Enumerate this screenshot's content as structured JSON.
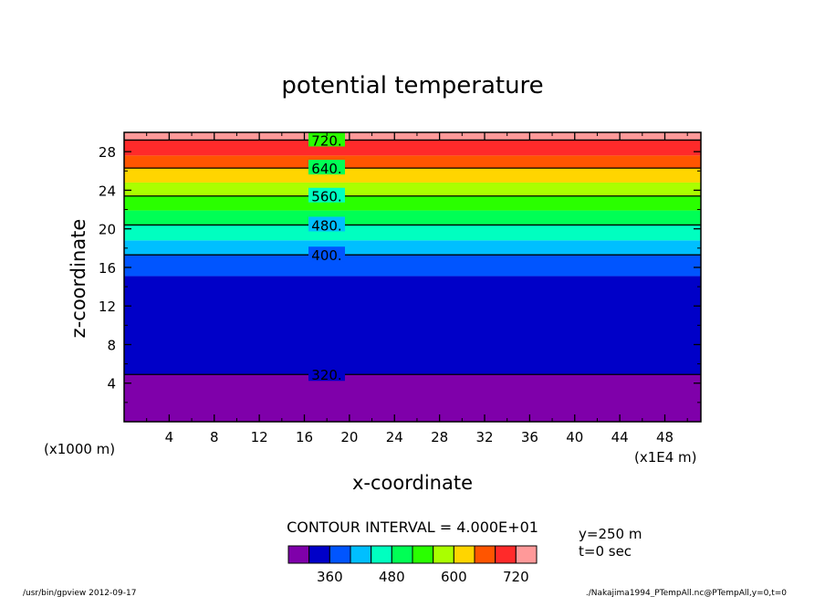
{
  "chart_data": {
    "type": "contour",
    "title": "potential temperature",
    "xlabel": "x-coordinate",
    "ylabel": "z-coordinate",
    "x_unit_label": "(x1E4 m)",
    "y_unit_label": "(x1000 m)",
    "xlim": [
      0,
      51.2
    ],
    "ylim": [
      0,
      30
    ],
    "x_ticks": [
      4,
      8,
      12,
      16,
      20,
      24,
      28,
      32,
      36,
      40,
      44,
      48
    ],
    "y_ticks": [
      4,
      8,
      12,
      16,
      20,
      24,
      28
    ],
    "bands": [
      {
        "from": 0,
        "to": 4.9,
        "color": "#7f00aa"
      },
      {
        "from": 4.9,
        "to": 15.1,
        "color": "#0000c8"
      },
      {
        "from": 15.1,
        "to": 17.3,
        "color": "#0055ff"
      },
      {
        "from": 17.3,
        "to": 18.8,
        "color": "#00bfff"
      },
      {
        "from": 18.8,
        "to": 20.4,
        "color": "#00ffc0"
      },
      {
        "from": 20.4,
        "to": 21.9,
        "color": "#00ff55"
      },
      {
        "from": 21.9,
        "to": 23.4,
        "color": "#2aff00"
      },
      {
        "from": 23.4,
        "to": 24.8,
        "color": "#aaff00"
      },
      {
        "from": 24.8,
        "to": 26.3,
        "color": "#ffd500"
      },
      {
        "from": 26.3,
        "to": 27.6,
        "color": "#ff5500"
      },
      {
        "from": 27.6,
        "to": 29.2,
        "color": "#ff2a2a"
      },
      {
        "from": 29.2,
        "to": 30,
        "color": "#ff9999"
      }
    ],
    "contours": [
      {
        "z": 4.9,
        "label": "320."
      },
      {
        "z": 17.3,
        "label": "400."
      },
      {
        "z": 20.4,
        "label": "480."
      },
      {
        "z": 23.4,
        "label": "560."
      },
      {
        "z": 26.3,
        "label": "640."
      },
      {
        "z": 29.2,
        "label": "720."
      }
    ],
    "contour_interval_text": "CONTOUR INTERVAL = 4.000E+01",
    "colorbar": {
      "colors": [
        "#7f00aa",
        "#0000c8",
        "#0055ff",
        "#00bfff",
        "#00ffc0",
        "#00ff55",
        "#2aff00",
        "#aaff00",
        "#ffd500",
        "#ff5500",
        "#ff2a2a",
        "#ff9999"
      ],
      "tick_labels": [
        "360",
        "480",
        "600",
        "720"
      ],
      "tick_boundary_index": [
        2,
        5,
        8,
        11
      ]
    },
    "slice_info": [
      "y=250 m",
      "t=0 sec"
    ],
    "footer_left": "/usr/bin/gpview  2012-09-17",
    "footer_right": "./Nakajima1994_PTempAll.nc@PTempAll,y=0,t=0"
  }
}
